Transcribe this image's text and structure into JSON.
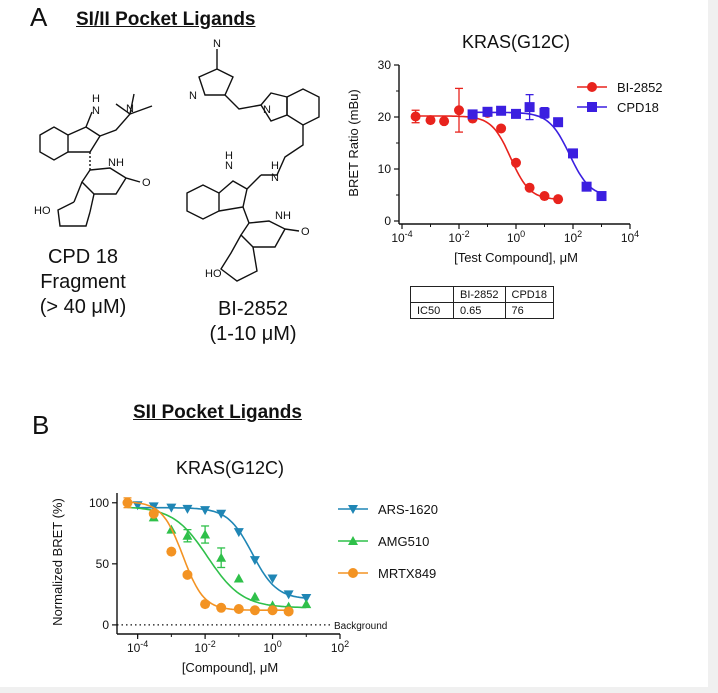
{
  "panel_a": {
    "letter": "A",
    "title": "SI/II Pocket Ligands",
    "molecules": [
      {
        "caption": [
          "CPD 18",
          "Fragment",
          "(> 40 μM)"
        ],
        "atoms": [
          "H",
          "N",
          "N",
          "NH",
          "O",
          "HO"
        ]
      },
      {
        "caption": [
          "BI-2852",
          "(1-10 μM)"
        ],
        "atoms": [
          "N",
          "N",
          "N",
          "H",
          "N",
          "N",
          "H",
          "NH",
          "O",
          "HO"
        ]
      }
    ],
    "table": {
      "header": [
        "",
        "BI-2852",
        "CPD18"
      ],
      "rows": [
        [
          "IC50",
          "0.65",
          "76"
        ]
      ]
    }
  },
  "panel_b": {
    "letter": "B",
    "title": "SII Pocket Ligands"
  },
  "chart_data": [
    {
      "type": "scatter",
      "title": "KRAS(G12C)",
      "xlabel": "[Test Compound], μM",
      "ylabel": "BRET Ratio (mBu)",
      "xscale": "log",
      "xlim": [
        0.0001,
        10000
      ],
      "ylim": [
        0,
        30
      ],
      "xticks": [
        "10-4",
        "10-2",
        "100",
        "102",
        "104"
      ],
      "yticks": [
        "0",
        "10",
        "20",
        "30"
      ],
      "legend_position": "top-right",
      "series": [
        {
          "name": "BI-2852",
          "color": "#e8231d",
          "marker": "circle",
          "x": [
            0.0003,
            0.001,
            0.003,
            0.01,
            0.03,
            0.1,
            0.3,
            1,
            3,
            10,
            30
          ],
          "y": [
            20.1,
            19.4,
            19.2,
            21.3,
            19.7,
            20.8,
            17.8,
            11.2,
            6.4,
            4.8,
            4.2
          ],
          "err": [
            1.2,
            0,
            0,
            4.2,
            0,
            0,
            0,
            0,
            0,
            0,
            0
          ]
        },
        {
          "name": "CPD18",
          "color": "#3b1fe0",
          "marker": "square",
          "x": [
            0.03,
            0.1,
            0.3,
            1,
            3,
            10,
            30,
            100,
            300,
            1000
          ],
          "y": [
            20.5,
            21.0,
            21.2,
            20.6,
            21.9,
            20.8,
            19.0,
            13.0,
            6.6,
            4.8
          ],
          "err": [
            0,
            0,
            0,
            0,
            2.4,
            1.0,
            0,
            0,
            0,
            0
          ]
        }
      ]
    },
    {
      "type": "scatter",
      "title": "KRAS(G12C)",
      "xlabel": "[Compound], μM",
      "ylabel": "Normalized BRET (%)",
      "xscale": "log",
      "xlim": [
        3e-05,
        100
      ],
      "ylim": [
        -5,
        108
      ],
      "xticks": [
        "10-4",
        "10-2",
        "100",
        "102"
      ],
      "yticks": [
        "0",
        "50",
        "100"
      ],
      "baseline_label": "Background",
      "legend_position": "right",
      "series": [
        {
          "name": "ARS-1620",
          "color": "#1f86b5",
          "marker": "triangle-down",
          "x": [
            0.0001,
            0.0003,
            0.001,
            0.003,
            0.01,
            0.03,
            0.1,
            0.3,
            1,
            3,
            10
          ],
          "y": [
            98,
            97,
            96,
            95,
            94,
            91,
            76,
            53,
            38,
            25,
            22
          ],
          "err": [
            0,
            0,
            0,
            0,
            0,
            0,
            0,
            0,
            0,
            0,
            0
          ]
        },
        {
          "name": "AMG510",
          "color": "#2fc04a",
          "marker": "triangle-up",
          "x": [
            0.0003,
            0.001,
            0.003,
            0.01,
            0.03,
            0.1,
            0.3,
            1,
            3,
            10
          ],
          "y": [
            88,
            78,
            73,
            74,
            55,
            38,
            23,
            16,
            15,
            17
          ],
          "err": [
            0,
            0,
            5,
            7,
            8,
            0,
            0,
            0,
            0,
            0
          ]
        },
        {
          "name": "MRTX849",
          "color": "#f39323",
          "marker": "circle",
          "x": [
            5e-05,
            0.0003,
            0.001,
            0.003,
            0.01,
            0.03,
            0.1,
            0.3,
            1,
            3
          ],
          "y": [
            100,
            91,
            60,
            41,
            17,
            14,
            13,
            12,
            12,
            11
          ],
          "err": [
            4,
            0,
            0,
            0,
            0,
            0,
            0,
            0,
            0,
            0
          ]
        }
      ]
    }
  ]
}
